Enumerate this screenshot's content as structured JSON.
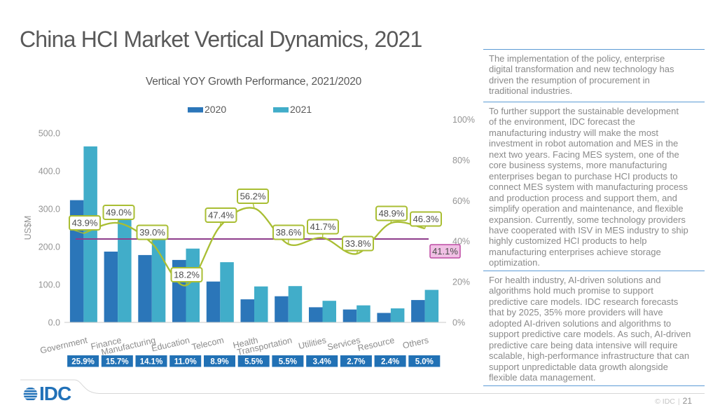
{
  "title": "China HCI Market Vertical Dynamics, 2021",
  "chart": {
    "subtitle": "Vertical YOY Growth Performance, 2021/2020",
    "ylabel": "US$M"
  },
  "chart_data": {
    "type": "bar+line",
    "categories": [
      "Government",
      "Finance",
      "Manufacturing",
      "Education",
      "Telecom",
      "Health",
      "Transportation",
      "Utilities",
      "Services",
      "Resource",
      "Others"
    ],
    "series": [
      {
        "name": "2020",
        "color": "#2B76B9",
        "values": [
          323,
          187,
          178,
          165,
          108,
          61,
          69,
          40,
          34,
          25,
          59
        ]
      },
      {
        "name": "2021",
        "color": "#41ADC9",
        "values": [
          465,
          279,
          247,
          195,
          159,
          95,
          96,
          57,
          45,
          37,
          86
        ]
      }
    ],
    "line": {
      "name": "YOY Growth",
      "color": "#A9BE33",
      "labels": [
        "43.9%",
        "49.0%",
        "39.0%",
        "18.2%",
        "47.4%",
        "56.2%",
        "38.6%",
        "41.7%",
        "33.8%",
        "48.9%",
        "46.3%"
      ],
      "values": [
        43.9,
        49.0,
        39.0,
        18.2,
        47.4,
        56.2,
        38.6,
        41.7,
        33.8,
        48.9,
        46.3
      ]
    },
    "average_line": {
      "value": 41.1,
      "label": "41.1%",
      "color": "#8E3D8C",
      "box_fill": "#F0C0E4",
      "box_stroke": "#BE4BA4"
    },
    "share_row": {
      "color": "#2171B5",
      "values": [
        "25.9%",
        "15.7%",
        "14.1%",
        "11.0%",
        "8.9%",
        "5.5%",
        "5.5%",
        "3.4%",
        "2.7%",
        "2.4%",
        "5.0%"
      ]
    },
    "left_axis": {
      "label": "US$M",
      "ticks": [
        "500.0",
        "400.0",
        "300.0",
        "200.0",
        "100.0",
        "0.0"
      ],
      "max": 500
    },
    "right_axis": {
      "ticks": [
        "100%",
        "80%",
        "60%",
        "40%",
        "20%",
        "0%"
      ],
      "max": 100
    },
    "title": "Vertical YOY Growth Performance, 2021/2020"
  },
  "panel": {
    "paragraphs": [
      "The implementation of the policy, enterprise\ndigital transformation and new technology has\ndriven the resumption of procurement in\ntraditional industries.",
      "To further support the sustainable development\nof the environment, IDC forecast the\nmanufacturing industry will make the most\ninvestment in robot automation and MES in the\nnext two years. Facing MES system, one of the\ncore business systems, more manufacturing\nenterprises began to purchase HCI products to\nconnect MES system with manufacturing process\nand production process and support them, and\nsimplify operation and maintenance, and flexible\nexpansion. Currently, some technology providers\nhave cooperated with ISV in MES industry to ship\nhighly customized HCI products to help\nmanufacturing enterprises achieve storage\noptimization.",
      "For health industry, AI-driven solutions and\nalgorithms hold much promise to support\npredictive care models. IDC research forecasts\nthat by 2025, 35% more providers will have\nadopted AI-driven solutions and algorithms to\nsupport predictive care models. As such, AI-driven\npredictive care being data intensive will require\nscalable, high-performance infrastructure that can\nsupport unpredictable data growth alongside\nflexible data management."
    ]
  },
  "footer": {
    "logo_text": "IDC",
    "copyright": "© IDC",
    "separator": "|",
    "page": "21"
  }
}
